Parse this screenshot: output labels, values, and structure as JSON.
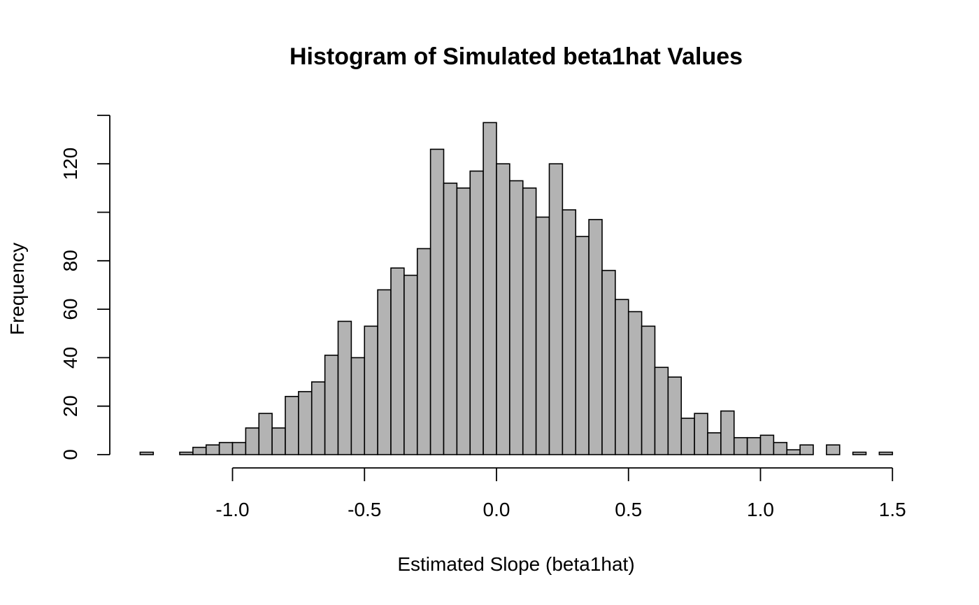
{
  "chart_data": {
    "type": "bar",
    "title": "Histogram of Simulated beta1hat Values",
    "xlabel": "Estimated Slope (beta1hat)",
    "ylabel": "Frequency",
    "xlim": [
      -1.35,
      1.5
    ],
    "ylim": [
      0,
      140
    ],
    "x_ticks": [
      -1.0,
      -0.5,
      0.0,
      0.5,
      1.0,
      1.5
    ],
    "x_tick_labels": [
      "-1.0",
      "-0.5",
      "0.0",
      "0.5",
      "1.0",
      "1.5"
    ],
    "y_ticks": [
      0,
      20,
      40,
      60,
      80,
      100,
      120,
      140
    ],
    "y_tick_labels": [
      "0",
      "20",
      "40",
      "60",
      "80",
      "",
      "120",
      ""
    ],
    "bin_width": 0.05,
    "bin_start": -1.35,
    "values": [
      1,
      0,
      0,
      1,
      3,
      4,
      5,
      5,
      11,
      17,
      11,
      24,
      26,
      30,
      41,
      55,
      40,
      53,
      68,
      77,
      74,
      85,
      126,
      112,
      110,
      117,
      137,
      120,
      113,
      110,
      98,
      120,
      101,
      90,
      97,
      76,
      64,
      59,
      53,
      36,
      32,
      15,
      17,
      9,
      18,
      7,
      7,
      8,
      5,
      2,
      4,
      0,
      4,
      0,
      1,
      0,
      1
    ],
    "grid": false,
    "colors": {
      "bar_fill": "#b3b3b3",
      "bar_stroke": "#000000"
    }
  }
}
